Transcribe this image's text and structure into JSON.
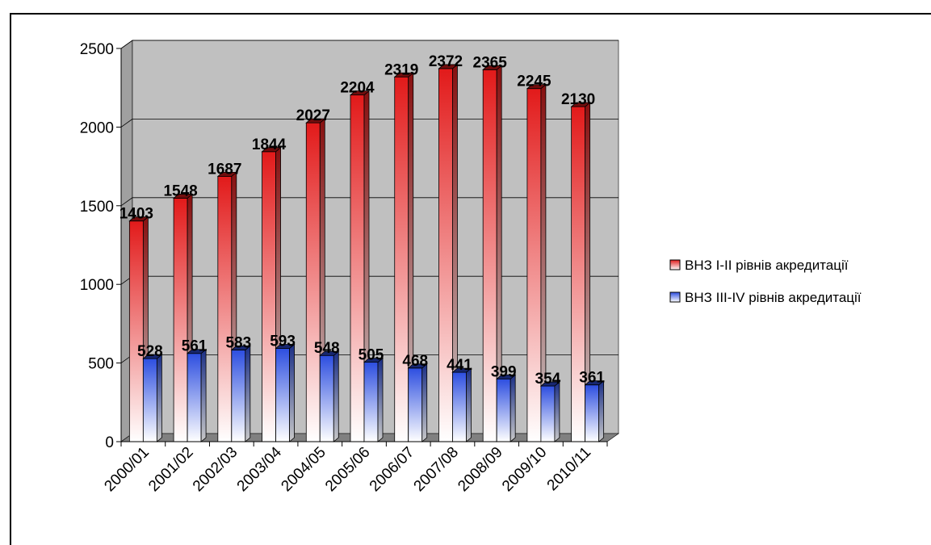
{
  "chart_data": {
    "type": "bar",
    "categories": [
      "2000/01",
      "2001/02",
      "2002/03",
      "2003/04",
      "2004/05",
      "2005/06",
      "2006/07",
      "2007/08",
      "2008/09",
      "2009/10",
      "2010/11"
    ],
    "series": [
      {
        "name": "ВНЗ І-ІІ рівнів акредитації",
        "values": [
          1403,
          1548,
          1687,
          1844,
          2027,
          2204,
          2319,
          2372,
          2365,
          2245,
          2130
        ],
        "color": "#e21a1a"
      },
      {
        "name": "ВНЗ ІІІ-IV рівнів акредитації",
        "values": [
          528,
          561,
          583,
          593,
          548,
          505,
          468,
          441,
          399,
          354,
          361
        ],
        "color": "#2d4ee0"
      }
    ],
    "ylim": [
      0,
      2500
    ],
    "yticks": [
      0,
      500,
      1000,
      1500,
      2000,
      2500
    ],
    "grid": true,
    "legend": "right",
    "title": "",
    "xlabel": "",
    "ylabel": "",
    "plot_background": "#c0c0c0",
    "floor_color": "#808080"
  }
}
